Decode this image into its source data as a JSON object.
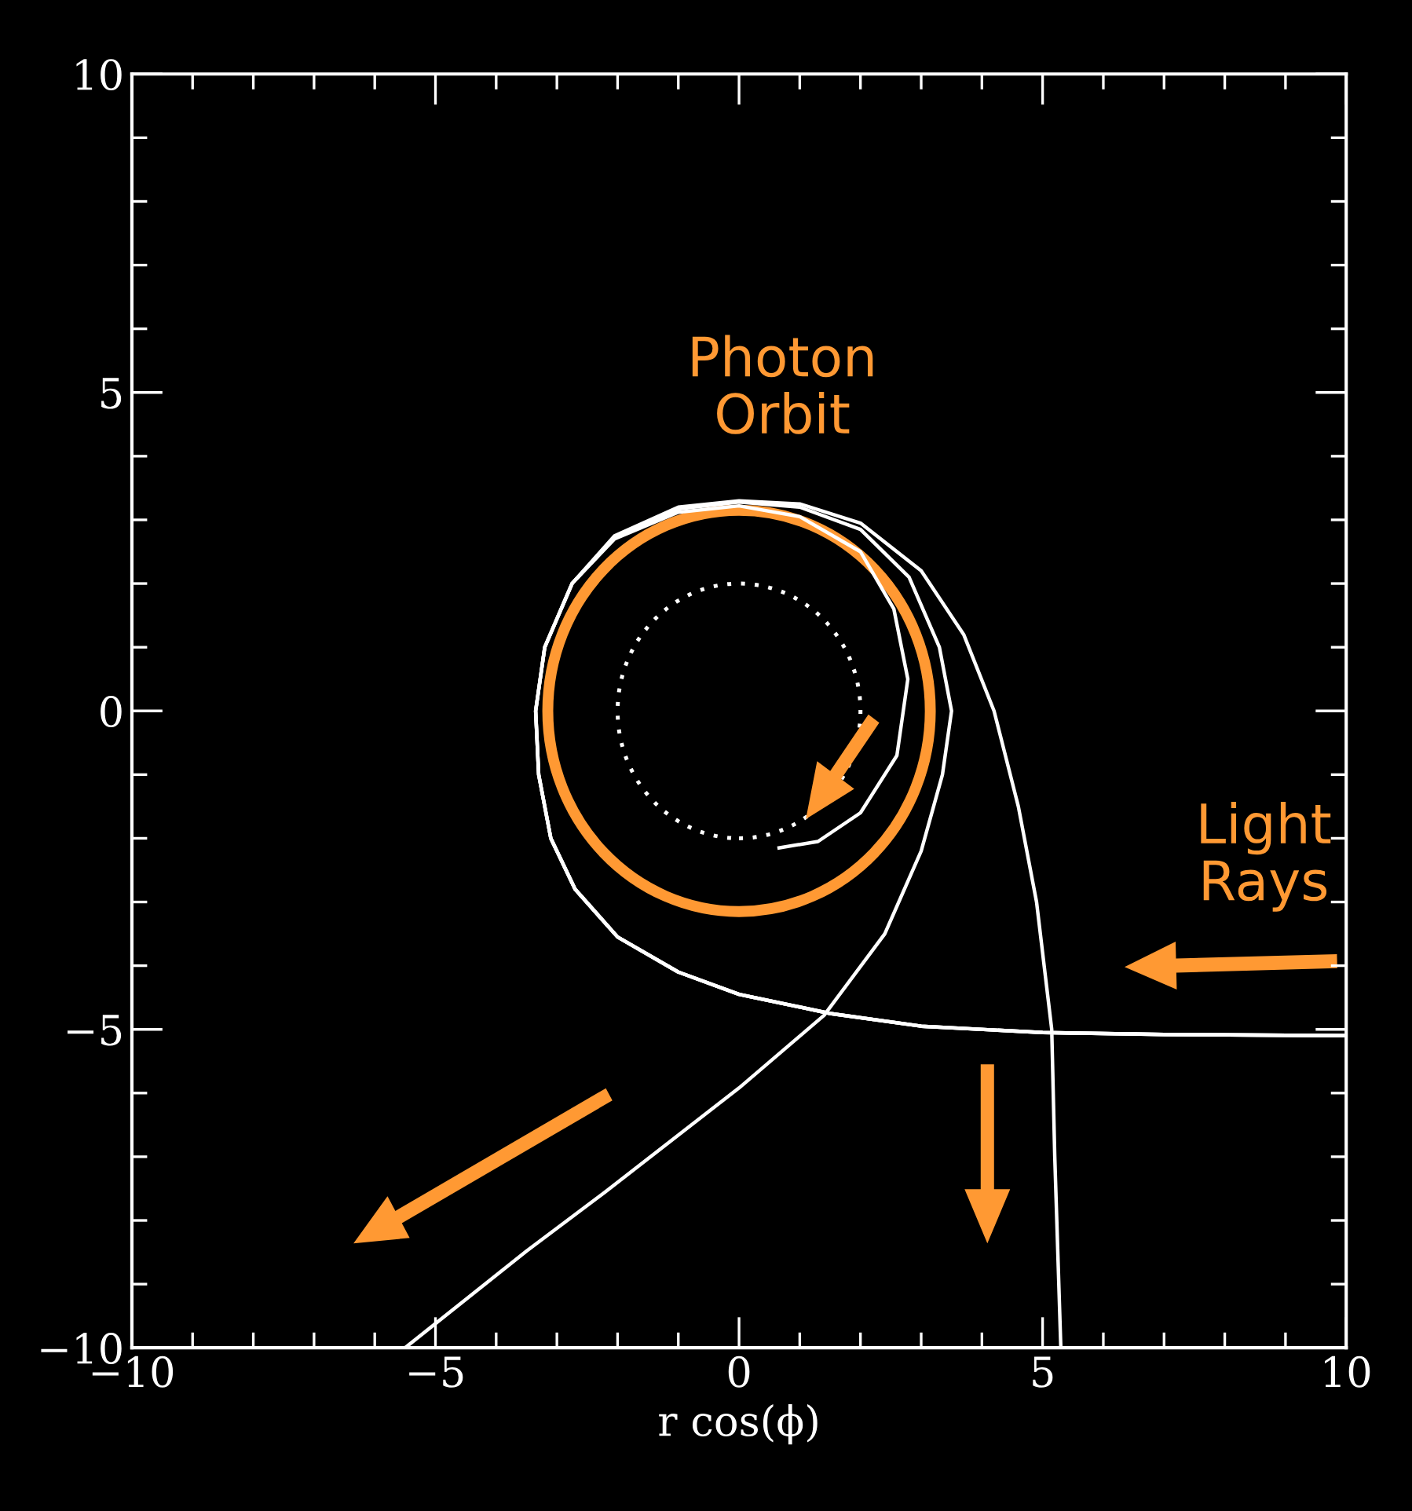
{
  "chart_data": {
    "type": "line",
    "xlabel": "r cos(ϕ)",
    "xlim": [
      -10,
      10
    ],
    "ylim": [
      -10,
      10
    ],
    "xticks": [
      {
        "value": -10,
        "label": "−10"
      },
      {
        "value": -9,
        "label": null
      },
      {
        "value": -8,
        "label": null
      },
      {
        "value": -7,
        "label": null
      },
      {
        "value": -6,
        "label": null
      },
      {
        "value": -5,
        "label": "−5"
      },
      {
        "value": -4,
        "label": null
      },
      {
        "value": -3,
        "label": null
      },
      {
        "value": -2,
        "label": null
      },
      {
        "value": -1,
        "label": null
      },
      0,
      {
        "value": 1,
        "label": null
      },
      {
        "value": 2,
        "label": null
      },
      {
        "value": 3,
        "label": null
      },
      {
        "value": 4,
        "label": null
      },
      5,
      {
        "value": 6,
        "label": null
      },
      {
        "value": 7,
        "label": null
      },
      {
        "value": 8,
        "label": null
      },
      {
        "value": 9,
        "label": null
      },
      10
    ],
    "yticks": [
      {
        "value": -10,
        "label": "−10"
      },
      {
        "value": -9,
        "label": null
      },
      {
        "value": -8,
        "label": null
      },
      {
        "value": -7,
        "label": null
      },
      {
        "value": -6,
        "label": null
      },
      {
        "value": -5,
        "label": "−5"
      },
      {
        "value": -4,
        "label": null
      },
      {
        "value": -3,
        "label": null
      },
      {
        "value": -2,
        "label": null
      },
      {
        "value": -1,
        "label": null
      },
      0,
      {
        "value": 1,
        "label": null
      },
      {
        "value": 2,
        "label": null
      },
      {
        "value": 3,
        "label": null
      },
      {
        "value": 4,
        "label": null
      },
      5,
      {
        "value": 6,
        "label": null
      },
      {
        "value": 7,
        "label": null
      },
      {
        "value": 8,
        "label": null
      },
      {
        "value": 9,
        "label": null
      },
      10
    ],
    "series": [
      {
        "color": "#ffffff",
        "line_style": "solid",
        "x": [
          10,
          7,
          5,
          3,
          1.5,
          0,
          -1,
          -2,
          -2.7,
          -3.1,
          -3.3,
          -3.35,
          -3.2,
          -2.75,
          -2.05,
          -1,
          0,
          1,
          2,
          3,
          3.7,
          4.2,
          4.6,
          4.9,
          5.15,
          5.2,
          5.3
        ],
        "values": [
          -5.1,
          -5.08,
          -5.05,
          -4.95,
          -4.75,
          -4.45,
          -4.1,
          -3.55,
          -2.8,
          -2,
          -1,
          0,
          1,
          2,
          2.75,
          3.2,
          3.3,
          3.25,
          2.95,
          2.2,
          1.2,
          0,
          -1.5,
          -3,
          -5,
          -7,
          -10
        ]
      },
      {
        "color": "#ffffff",
        "line_style": "solid",
        "x": [
          10,
          7,
          5,
          3,
          1.5,
          0,
          -1,
          -2,
          -2.7,
          -3.1,
          -3.3,
          -3.35,
          -3.2,
          -2.75,
          -2.05,
          -1,
          0,
          1,
          2,
          2.8,
          3.3,
          3.5,
          3.35,
          3.0,
          2.4,
          1.4,
          0,
          -2.2,
          -3.5,
          -5.5
        ],
        "values": [
          -5.1,
          -5.08,
          -5.05,
          -4.95,
          -4.75,
          -4.45,
          -4.1,
          -3.55,
          -2.8,
          -2,
          -1,
          0,
          1,
          2,
          2.72,
          3.17,
          3.28,
          3.2,
          2.85,
          2.1,
          1,
          0,
          -1,
          -2.2,
          -3.5,
          -4.78,
          -5.92,
          -7.55,
          -8.48,
          -10
        ]
      },
      {
        "color": "#ffffff",
        "line_style": "solid",
        "x": [
          10,
          7,
          5,
          3,
          1.5,
          0,
          -1,
          -2,
          -2.7,
          -3.1,
          -3.3,
          -3.35,
          -3.2,
          -2.75,
          -2.05,
          -1,
          0,
          1,
          2,
          2.55,
          2.78,
          2.6,
          2.0,
          1.3,
          0.66
        ],
        "values": [
          -5.1,
          -5.08,
          -5.05,
          -4.95,
          -4.75,
          -4.45,
          -4.1,
          -3.55,
          -2.8,
          -2,
          -1,
          0,
          1,
          2,
          2.7,
          3.12,
          3.22,
          3.05,
          2.5,
          1.6,
          0.5,
          -0.7,
          -1.6,
          -2.05,
          -2.15
        ]
      }
    ],
    "annotations": [
      "Photon\nOrbit",
      "Light\nRays"
    ]
  }
}
